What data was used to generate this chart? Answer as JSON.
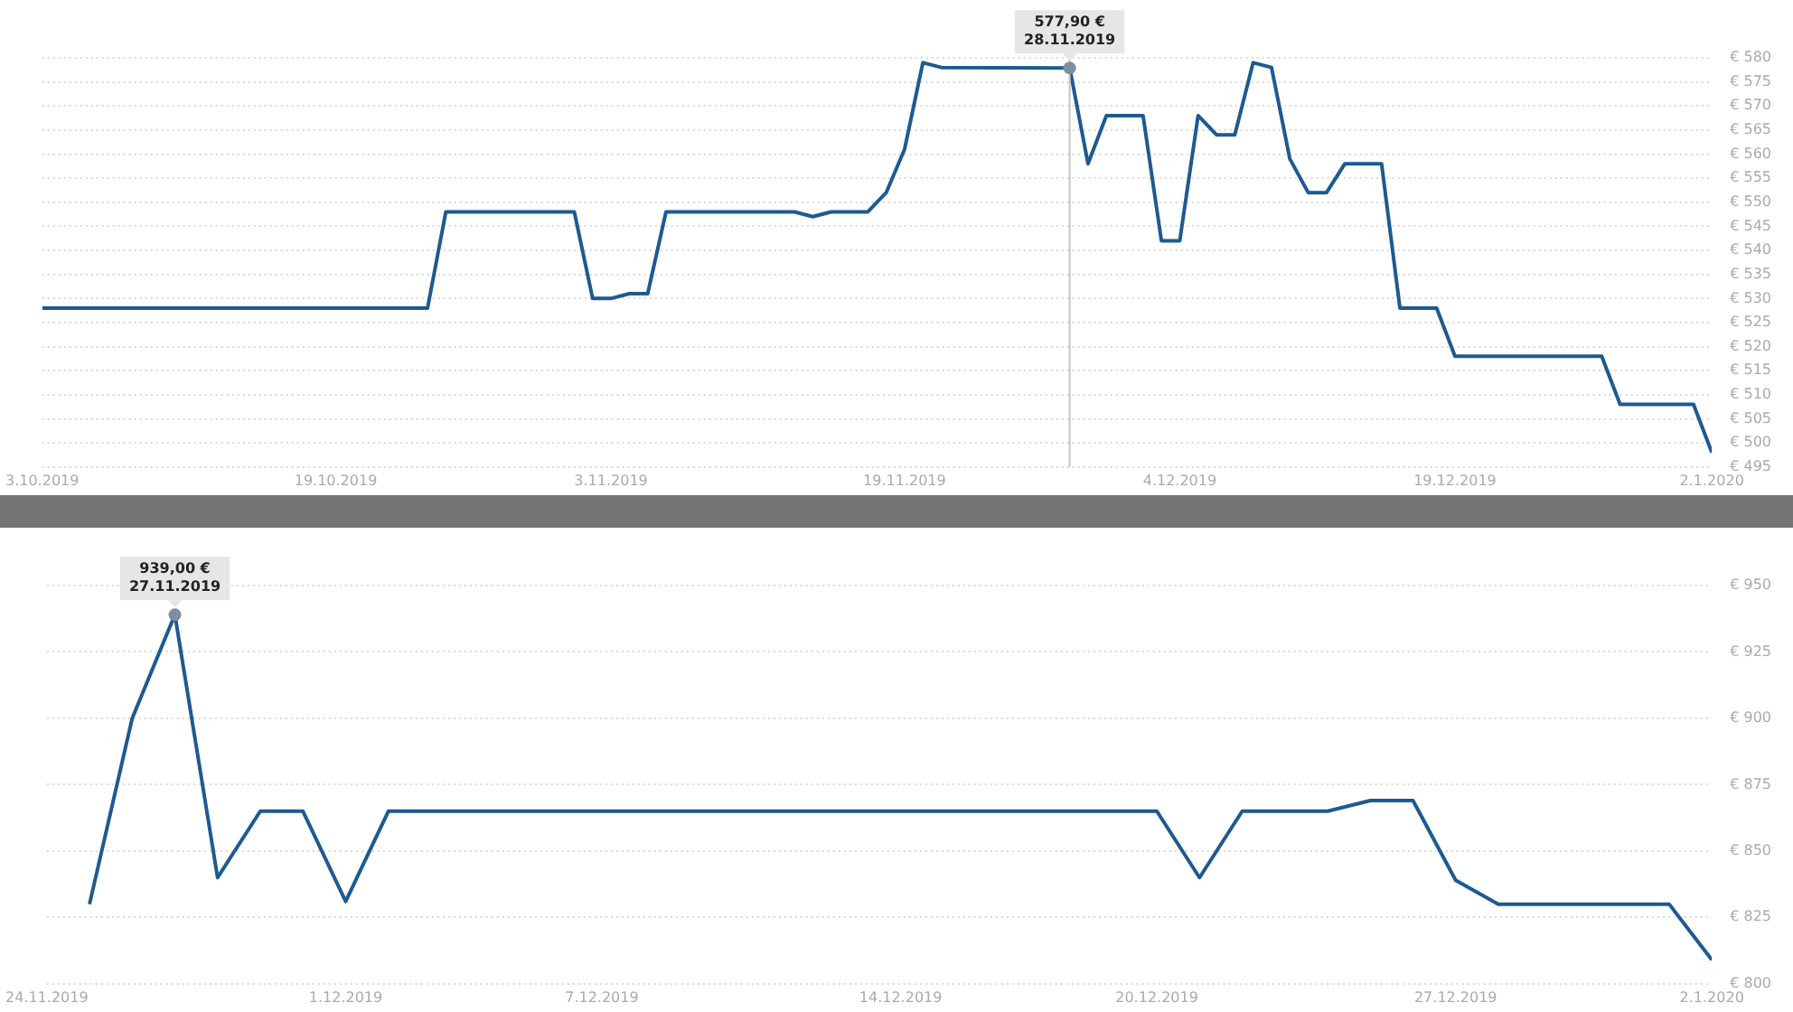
{
  "chart_data": [
    {
      "type": "line",
      "color": "#1d5a91",
      "marker": "none",
      "line_style": "solid",
      "grid": "y",
      "x": [
        "2019-10-03",
        "2019-10-24",
        "2019-10-25",
        "2019-11-01",
        "2019-11-02",
        "2019-11-03",
        "2019-11-04",
        "2019-11-05",
        "2019-11-06",
        "2019-11-13",
        "2019-11-14",
        "2019-11-15",
        "2019-11-17",
        "2019-11-18",
        "2019-11-19",
        "2019-11-20",
        "2019-11-21",
        "2019-11-28",
        "2019-11-29",
        "2019-11-30",
        "2019-12-02",
        "2019-12-03",
        "2019-12-04",
        "2019-12-05",
        "2019-12-06",
        "2019-12-07",
        "2019-12-08",
        "2019-12-09",
        "2019-12-10",
        "2019-12-11",
        "2019-12-12",
        "2019-12-13",
        "2019-12-15",
        "2019-12-16",
        "2019-12-18",
        "2019-12-19",
        "2019-12-27",
        "2019-12-28",
        "2020-01-01",
        "2020-01-02"
      ],
      "values": [
        528,
        528,
        548,
        548,
        530,
        530,
        531,
        531,
        548,
        548,
        547,
        548,
        548,
        552,
        561,
        579,
        578,
        577.9,
        558,
        568,
        568,
        542,
        542,
        568,
        564,
        564,
        579,
        578,
        559,
        552,
        552,
        558,
        558,
        528,
        528,
        518,
        518,
        508,
        508,
        498
      ],
      "xlim": [
        "2019-10-03",
        "2020-01-02"
      ],
      "xticks": [
        {
          "value": "2019-10-03",
          "label": "3.10.2019"
        },
        {
          "value": "2019-10-19",
          "label": "19.10.2019"
        },
        {
          "value": "2019-11-03",
          "label": "3.11.2019"
        },
        {
          "value": "2019-11-19",
          "label": "19.11.2019"
        },
        {
          "value": "2019-12-04",
          "label": "4.12.2019"
        },
        {
          "value": "2019-12-19",
          "label": "19.12.2019"
        },
        {
          "value": "2020-01-02",
          "label": "2.1.2020"
        }
      ],
      "ylim": [
        495,
        580
      ],
      "yticks": [
        {
          "value": 495,
          "label": "€ 495"
        },
        {
          "value": 500,
          "label": "€ 500"
        },
        {
          "value": 505,
          "label": "€ 505"
        },
        {
          "value": 510,
          "label": "€ 510"
        },
        {
          "value": 515,
          "label": "€ 515"
        },
        {
          "value": 520,
          "label": "€ 520"
        },
        {
          "value": 525,
          "label": "€ 525"
        },
        {
          "value": 530,
          "label": "€ 530"
        },
        {
          "value": 535,
          "label": "€ 535"
        },
        {
          "value": 540,
          "label": "€ 540"
        },
        {
          "value": 545,
          "label": "€ 545"
        },
        {
          "value": 550,
          "label": "€ 550"
        },
        {
          "value": 555,
          "label": "€ 555"
        },
        {
          "value": 560,
          "label": "€ 560"
        },
        {
          "value": 565,
          "label": "€ 565"
        },
        {
          "value": 570,
          "label": "€ 570"
        },
        {
          "value": 575,
          "label": "€ 575"
        },
        {
          "value": 580,
          "label": "€ 580"
        }
      ],
      "ref_lines": [
        {
          "axis": "x",
          "value": "2019-11-28",
          "color": "#c4c4c4"
        }
      ],
      "annotations": [
        {
          "text": "577,90 €\n28.11.2019",
          "x": "2019-11-28",
          "y": 577.9
        }
      ]
    },
    {
      "type": "line",
      "color": "#1d5a91",
      "marker": "none",
      "line_style": "solid",
      "grid": "y",
      "x": [
        "2019-11-25",
        "2019-11-26",
        "2019-11-27",
        "2019-11-28",
        "2019-11-29",
        "2019-11-30",
        "2019-12-01",
        "2019-12-02",
        "2019-12-20",
        "2019-12-21",
        "2019-12-22",
        "2019-12-24",
        "2019-12-25",
        "2019-12-26",
        "2019-12-27",
        "2019-12-28",
        "2020-01-01",
        "2020-01-02"
      ],
      "values": [
        830,
        900,
        939,
        840,
        865,
        865,
        831,
        865,
        865,
        840,
        865,
        865,
        869,
        869,
        839,
        830,
        830,
        809
      ],
      "xlim": [
        "2019-11-24",
        "2020-01-02"
      ],
      "xticks": [
        {
          "value": "2019-11-24",
          "label": "24.11.2019"
        },
        {
          "value": "2019-12-01",
          "label": "1.12.2019"
        },
        {
          "value": "2019-12-07",
          "label": "7.12.2019"
        },
        {
          "value": "2019-12-14",
          "label": "14.12.2019"
        },
        {
          "value": "2019-12-20",
          "label": "20.12.2019"
        },
        {
          "value": "2019-12-27",
          "label": "27.12.2019"
        },
        {
          "value": "2020-01-02",
          "label": "2.1.2020"
        }
      ],
      "ylim": [
        800,
        950
      ],
      "yticks": [
        {
          "value": 800,
          "label": "€ 800"
        },
        {
          "value": 825,
          "label": "€ 825"
        },
        {
          "value": 850,
          "label": "€ 850"
        },
        {
          "value": 875,
          "label": "€ 875"
        },
        {
          "value": 900,
          "label": "€ 900"
        },
        {
          "value": 925,
          "label": "€ 925"
        },
        {
          "value": 950,
          "label": "€ 950"
        }
      ],
      "annotations": [
        {
          "text": "939,00 €\n27.11.2019",
          "x": "2019-11-27",
          "y": 939
        }
      ]
    }
  ]
}
